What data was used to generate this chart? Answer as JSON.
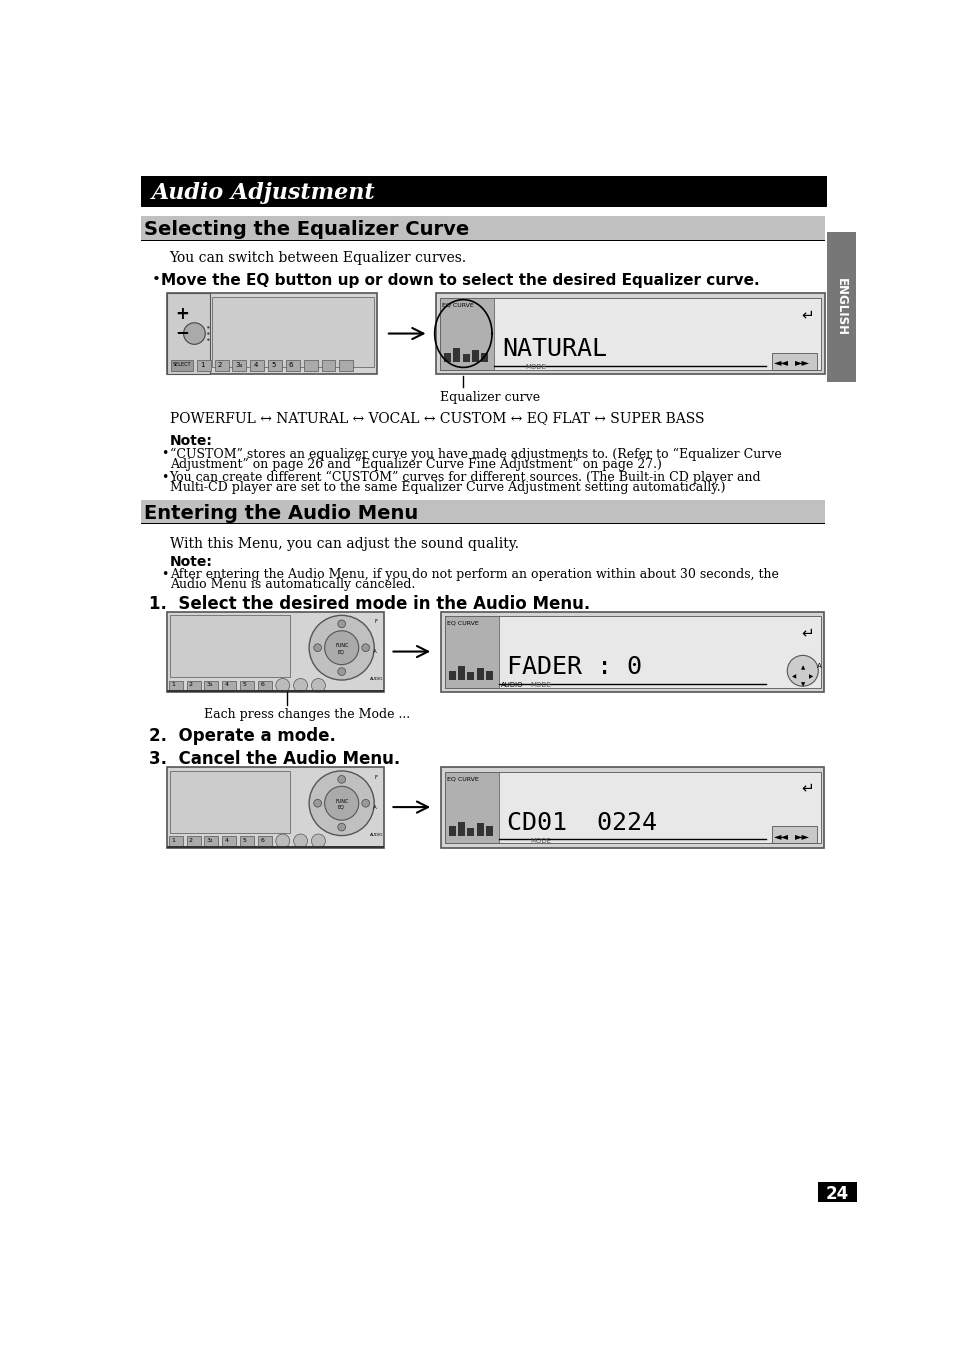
{
  "page_bg": "#ffffff",
  "header_bg": "#000000",
  "header_text": "Audio Adjustment",
  "header_text_color": "#ffffff",
  "section1_title": "Selecting the Equalizer Curve",
  "section1_title_bg": "#c0c0c0",
  "section2_title": "Entering the Audio Menu",
  "section2_title_bg": "#c0c0c0",
  "section1_body1": "You can switch between Equalizer curves.",
  "section1_bullet": "Move the EQ button up or down to select the desired Equalizer curve.",
  "section1_caption": "Equalizer curve",
  "section1_eq_line": "POWERFUL ↔ NATURAL ↔ VOCAL ↔ CUSTOM ↔ EQ FLAT ↔ SUPER BASS",
  "note_label": "Note:",
  "note1_text1": "“CUSTOM” stores an equalizer curve you have made adjustments to. (Refer to “Equalizer Curve",
  "note1_text2": "Adjustment” on page 26 and “Equalizer Curve Fine Adjustment” on page 27.)",
  "note1_text3": "You can create different “CUSTOM” curves for different sources. (The Built-in CD player and",
  "note1_text4": "Multi-CD player are set to the same Equalizer Curve Adjustment setting automatically.)",
  "section2_body1": "With this Menu, you can adjust the sound quality.",
  "note2_text1": "After entering the Audio Menu, if you do not perform an operation within about 30 seconds, the",
  "note2_text2": "Audio Menu is automatically canceled.",
  "step1_text": "1.  Select the desired mode in the Audio Menu.",
  "step1_caption": "Each press changes the Mode ...",
  "step2_text": "2.  Operate a mode.",
  "step3_text": "3.  Cancel the Audio Menu.",
  "page_number": "24",
  "english_tab_text": "ENGLISH",
  "english_tab_bg": "#777777",
  "english_tab_text_color": "#ffffff",
  "underline_color": "#000000",
  "device_outer_bg": "#d4d4d4",
  "device_outer_stroke": "#555555",
  "display_bg": "#e8e8e8",
  "display_stroke": "#555555",
  "eq_section_bg": "#b0b0b0",
  "button_bg": "#aaaaaa",
  "button_stroke": "#555555"
}
